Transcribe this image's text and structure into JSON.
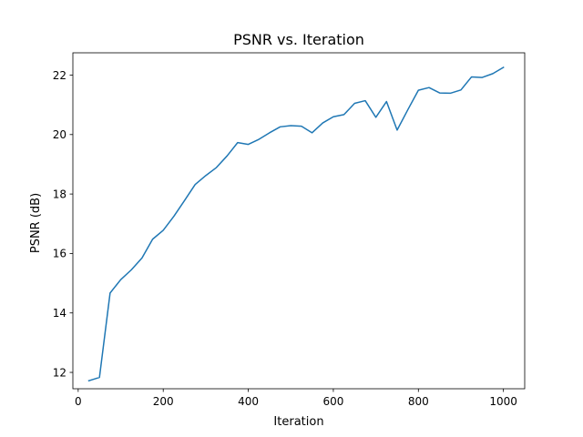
{
  "chart_data": {
    "type": "line",
    "title": "PSNR vs. Iteration",
    "xlabel": "Iteration",
    "ylabel": "PSNR (dB)",
    "xlim": [
      -12.5,
      1050
    ],
    "ylim": [
      11.45,
      22.75
    ],
    "xticks": [
      0,
      200,
      400,
      600,
      800,
      1000
    ],
    "yticks": [
      12,
      14,
      16,
      18,
      20,
      22
    ],
    "grid": false,
    "legend": "none",
    "series": [
      {
        "color": "#1f77b4",
        "x": [
          25,
          50,
          75,
          100,
          125,
          150,
          175,
          200,
          225,
          250,
          275,
          300,
          325,
          350,
          375,
          400,
          425,
          450,
          475,
          500,
          525,
          550,
          575,
          600,
          625,
          650,
          675,
          700,
          725,
          750,
          775,
          800,
          825,
          850,
          875,
          900,
          925,
          950,
          975,
          1000
        ],
        "y": [
          11.72,
          11.83,
          14.67,
          15.12,
          15.45,
          15.85,
          16.48,
          16.78,
          17.25,
          17.78,
          18.32,
          18.62,
          18.89,
          19.28,
          19.73,
          19.67,
          19.84,
          20.06,
          20.26,
          20.3,
          20.28,
          20.06,
          20.39,
          20.6,
          20.67,
          21.05,
          21.14,
          20.58,
          21.11,
          20.15,
          20.83,
          21.49,
          21.58,
          21.4,
          21.39,
          21.5,
          21.94,
          21.92,
          22.05,
          22.26
        ]
      }
    ]
  }
}
